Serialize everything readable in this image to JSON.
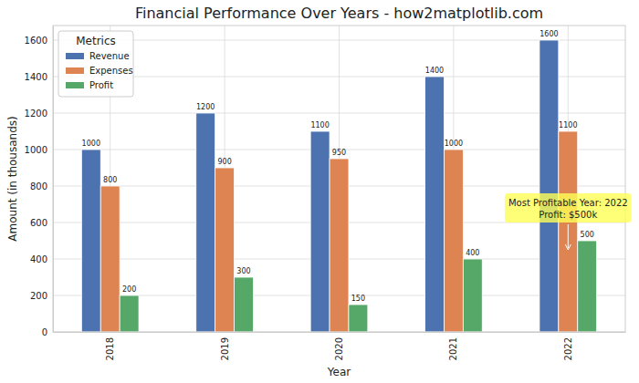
{
  "chart_data": {
    "type": "bar",
    "title": "Financial Performance Over Years - how2matplotlib.com",
    "x_label": "Year",
    "y_label": "Amount (in thousands)",
    "categories": [
      "2018",
      "2019",
      "2020",
      "2021",
      "2022"
    ],
    "series": [
      {
        "name": "Revenue",
        "color": "#4c72b0",
        "values": [
          1000,
          1200,
          1100,
          1400,
          1600
        ]
      },
      {
        "name": "Expenses",
        "color": "#dd8452",
        "values": [
          800,
          900,
          950,
          1000,
          1100
        ]
      },
      {
        "name": "Profit",
        "color": "#55a868",
        "values": [
          200,
          300,
          150,
          400,
          500
        ]
      }
    ],
    "ylim": [
      0,
      1680
    ],
    "yticks": [
      0,
      200,
      400,
      600,
      800,
      1000,
      1200,
      1400,
      1600
    ],
    "grid": true,
    "legend": "upper left",
    "legend_title": "Metrics",
    "data_labels": true,
    "annotations": [
      {
        "lines": [
          "Most Profitable Year: 2022",
          "Profit: $500k"
        ],
        "x": "2022",
        "y": 500
      }
    ]
  }
}
